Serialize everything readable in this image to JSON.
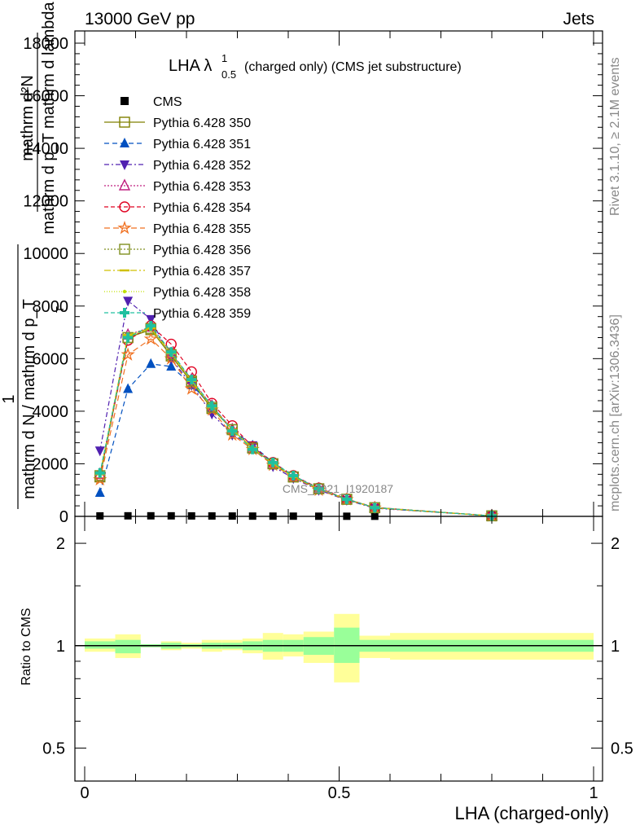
{
  "header": {
    "energy_label": "13000 GeV pp",
    "process_label": "Jets",
    "title_main": "LHA λ",
    "title_sup": "1",
    "title_sub": "0.5",
    "title_rest": "(charged only) (CMS jet substructure)",
    "watermark": "CMS_2021_I1920187"
  },
  "side": {
    "rivet": "Rivet 3.1.10, ≥ 2.1M events",
    "mcplots": "mcplots.cern.ch [arXiv:1306.3436]"
  },
  "colors": {
    "band_inner": "#99ff99",
    "band_outer": "#ffff99"
  },
  "chart_data": [
    {
      "type": "line",
      "panel": "main",
      "ylabel_fraction_top": "mathrm d²N",
      "ylabel_fraction_bottom": "mathrm d p_T mathrm d lambda",
      "ylabel_prefix_top": "1",
      "ylabel_prefix_bottom": "mathrm d N / mathrm d p_T",
      "ylabel_sub_T": "T",
      "xlim": [
        0,
        1
      ],
      "ylim": [
        0,
        18000
      ],
      "y_ticks": [
        0,
        2000,
        4000,
        6000,
        8000,
        10000,
        12000,
        14000,
        16000,
        18000
      ],
      "y_tick_labels": [
        "0",
        "2000",
        "4000",
        "6000",
        "8000",
        "10000",
        "12000",
        "14000",
        "16000",
        "18000"
      ],
      "legend_position": "top-left",
      "x": [
        0.03,
        0.085,
        0.13,
        0.17,
        0.21,
        0.25,
        0.29,
        0.33,
        0.37,
        0.41,
        0.46,
        0.515,
        0.57,
        0.8
      ],
      "series": [
        {
          "name": "CMS",
          "color": "#000000",
          "marker": "square-filled",
          "dash": "none",
          "values": [
            18,
            21,
            21,
            20,
            17,
            15,
            12,
            10,
            9,
            8,
            6,
            5,
            4,
            1
          ]
        },
        {
          "name": "Pythia 6.428 350",
          "color": "#808000",
          "marker": "square-open",
          "dash": "solid",
          "values": [
            1500,
            6800,
            7100,
            6100,
            5100,
            4100,
            3300,
            2600,
            2000,
            1500,
            1050,
            650,
            330,
            20
          ]
        },
        {
          "name": "Pythia 6.428 351",
          "color": "#0050c0",
          "marker": "triangle-up-filled",
          "dash": "6,4",
          "values": [
            900,
            4850,
            5800,
            5700,
            5000,
            4200,
            3300,
            2700,
            2050,
            1550,
            1050,
            650,
            330,
            20
          ]
        },
        {
          "name": "Pythia 6.428 352",
          "color": "#5020b0",
          "marker": "triangle-down-filled",
          "dash": "6,3,2,3",
          "values": [
            2500,
            8200,
            7500,
            6000,
            5000,
            3900,
            3100,
            2700,
            1900,
            1450,
            1000,
            620,
            310,
            20
          ]
        },
        {
          "name": "Pythia 6.428 353",
          "color": "#c02080",
          "marker": "triangle-up-open",
          "dash": "2,2",
          "values": [
            1600,
            6900,
            7200,
            6200,
            5200,
            4200,
            3300,
            2600,
            2000,
            1500,
            1050,
            650,
            330,
            20
          ]
        },
        {
          "name": "Pythia 6.428 354",
          "color": "#e00020",
          "marker": "circle-open",
          "dash": "5,3",
          "values": [
            1550,
            6700,
            7250,
            6550,
            5500,
            4300,
            3450,
            2650,
            2050,
            1550,
            1080,
            660,
            340,
            20
          ]
        },
        {
          "name": "Pythia 6.428 355",
          "color": "#f07020",
          "marker": "star-open",
          "dash": "7,4",
          "values": [
            1400,
            6150,
            6750,
            6000,
            4850,
            4050,
            3100,
            2550,
            1950,
            1500,
            1000,
            640,
            320,
            20
          ]
        },
        {
          "name": "Pythia 6.428 356",
          "color": "#809020",
          "marker": "square-open",
          "dash": "2,2",
          "values": [
            1550,
            6800,
            7150,
            6150,
            5150,
            4150,
            3300,
            2600,
            2000,
            1500,
            1050,
            650,
            330,
            20
          ]
        },
        {
          "name": "Pythia 6.428 357",
          "color": "#d0c000",
          "marker": "dash-marker",
          "dash": "8,3,2,3",
          "values": [
            1600,
            6900,
            7150,
            6200,
            5150,
            4150,
            3300,
            2600,
            2000,
            1500,
            1050,
            650,
            330,
            20
          ]
        },
        {
          "name": "Pythia 6.428 358",
          "color": "#c0e000",
          "marker": "dot",
          "dash": "1,2",
          "values": [
            1600,
            6900,
            7100,
            6200,
            5150,
            4150,
            3300,
            2600,
            2000,
            1500,
            1050,
            650,
            330,
            20
          ]
        },
        {
          "name": "Pythia 6.428 359",
          "color": "#20c0a0",
          "marker": "plus-thick",
          "dash": "5,3",
          "values": [
            1650,
            6800,
            7250,
            6250,
            5200,
            4200,
            3250,
            2550,
            2050,
            1550,
            1050,
            650,
            330,
            20
          ]
        }
      ]
    },
    {
      "type": "area",
      "panel": "ratio",
      "ylabel": "Ratio to CMS",
      "xlabel": "LHA (charged-only)",
      "xlim": [
        0,
        1
      ],
      "ylim": [
        0.4,
        2.4
      ],
      "y_scale": "log",
      "y_ticks": [
        0.5,
        1,
        2
      ],
      "y_tick_labels": [
        "0.5",
        "1",
        "2"
      ],
      "x_ticks": [
        0,
        0.5,
        1
      ],
      "x_tick_labels": [
        "0",
        "0.5",
        "1"
      ],
      "bins": [
        {
          "lo": 0.0,
          "hi": 0.06,
          "inner": [
            0.98,
            1.03
          ],
          "outer": [
            0.96,
            1.05
          ]
        },
        {
          "lo": 0.06,
          "hi": 0.11,
          "inner": [
            0.95,
            1.04
          ],
          "outer": [
            0.92,
            1.08
          ]
        },
        {
          "lo": 0.11,
          "hi": 0.15,
          "inner": [
            0.99,
            1.01
          ],
          "outer": [
            0.99,
            1.01
          ]
        },
        {
          "lo": 0.15,
          "hi": 0.19,
          "inner": [
            0.98,
            1.02
          ],
          "outer": [
            0.97,
            1.03
          ]
        },
        {
          "lo": 0.19,
          "hi": 0.23,
          "inner": [
            0.99,
            1.01
          ],
          "outer": [
            0.98,
            1.02
          ]
        },
        {
          "lo": 0.23,
          "hi": 0.27,
          "inner": [
            0.98,
            1.02
          ],
          "outer": [
            0.96,
            1.04
          ]
        },
        {
          "lo": 0.27,
          "hi": 0.31,
          "inner": [
            0.98,
            1.02
          ],
          "outer": [
            0.97,
            1.04
          ]
        },
        {
          "lo": 0.31,
          "hi": 0.35,
          "inner": [
            0.97,
            1.03
          ],
          "outer": [
            0.95,
            1.05
          ]
        },
        {
          "lo": 0.35,
          "hi": 0.39,
          "inner": [
            0.96,
            1.04
          ],
          "outer": [
            0.91,
            1.09
          ]
        },
        {
          "lo": 0.39,
          "hi": 0.43,
          "inner": [
            0.96,
            1.04
          ],
          "outer": [
            0.93,
            1.08
          ]
        },
        {
          "lo": 0.43,
          "hi": 0.49,
          "inner": [
            0.94,
            1.06
          ],
          "outer": [
            0.89,
            1.1
          ]
        },
        {
          "lo": 0.49,
          "hi": 0.54,
          "inner": [
            0.89,
            1.13
          ],
          "outer": [
            0.78,
            1.24
          ]
        },
        {
          "lo": 0.54,
          "hi": 0.6,
          "inner": [
            0.96,
            1.04
          ],
          "outer": [
            0.92,
            1.07
          ]
        },
        {
          "lo": 0.6,
          "hi": 1.0,
          "inner": [
            0.96,
            1.04
          ],
          "outer": [
            0.91,
            1.09
          ]
        }
      ]
    }
  ]
}
